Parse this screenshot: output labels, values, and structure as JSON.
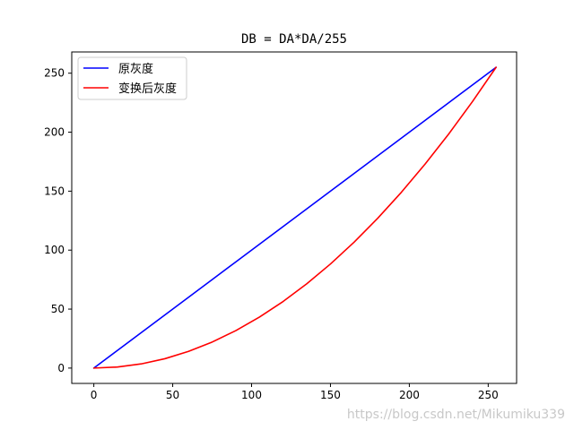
{
  "chart_data": {
    "type": "line",
    "title": "DB = DA*DA/255",
    "xlabel": "",
    "ylabel": "",
    "xlim": [
      -14,
      268
    ],
    "ylim": [
      -13,
      268
    ],
    "x_ticks": [
      0,
      50,
      100,
      150,
      200,
      250
    ],
    "y_ticks": [
      0,
      50,
      100,
      150,
      200,
      250
    ],
    "grid": false,
    "legend_position": "top-left",
    "x": [
      0,
      15,
      30,
      45,
      60,
      75,
      90,
      105,
      120,
      135,
      150,
      165,
      180,
      195,
      210,
      225,
      240,
      255
    ],
    "series": [
      {
        "name": "原灰度",
        "color": "#0000ff",
        "values": [
          0,
          15,
          30,
          45,
          60,
          75,
          90,
          105,
          120,
          135,
          150,
          165,
          180,
          195,
          210,
          225,
          240,
          255
        ]
      },
      {
        "name": "变换后灰度",
        "color": "#ff0000",
        "values": [
          0,
          0.88,
          3.53,
          7.94,
          14.12,
          22.06,
          31.76,
          43.24,
          56.47,
          71.47,
          88.24,
          106.76,
          127.06,
          149.12,
          172.94,
          198.53,
          225.88,
          255
        ]
      }
    ]
  },
  "watermark": "https://blog.csdn.net/Mikumiku339"
}
